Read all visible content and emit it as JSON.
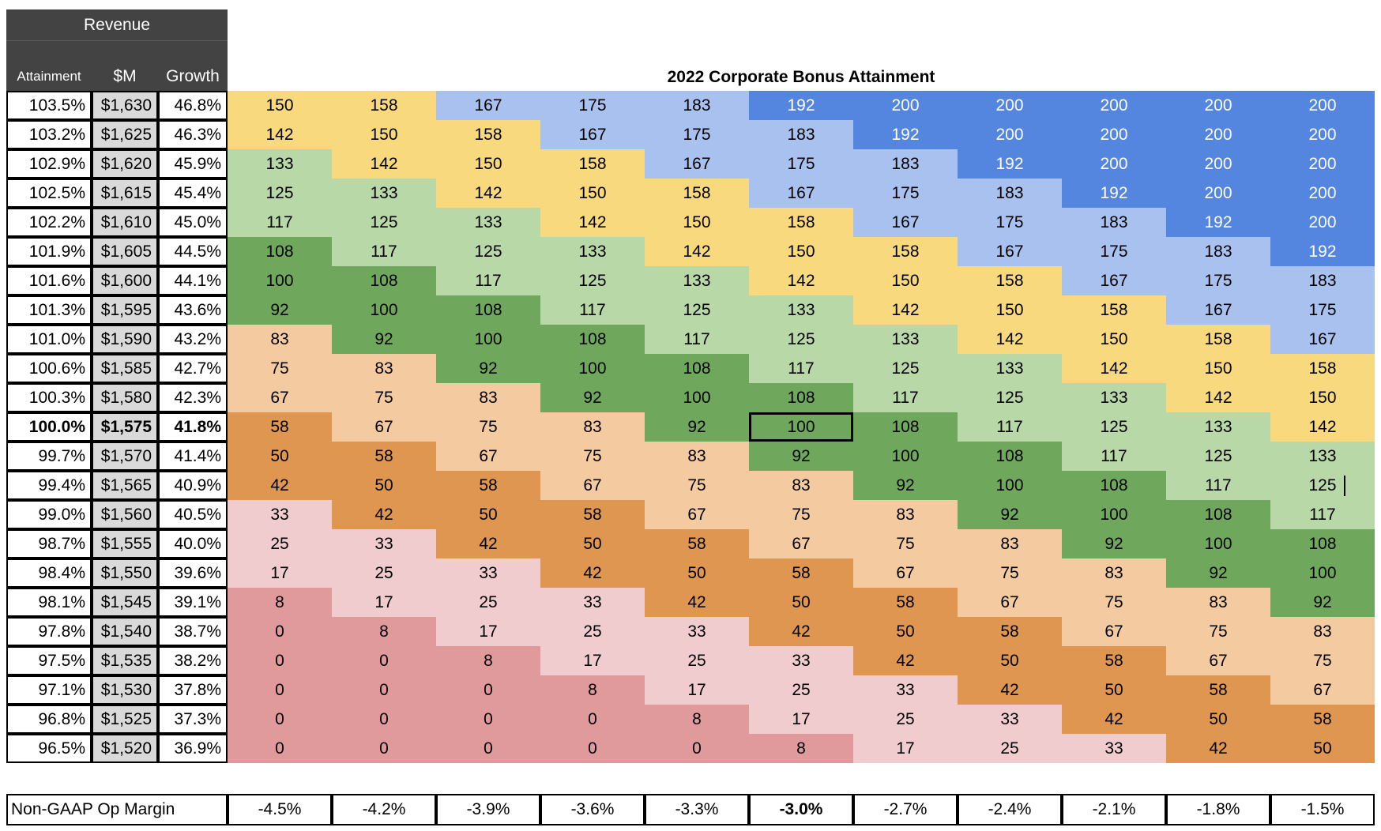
{
  "header": {
    "revenue_label": "Revenue",
    "col_attainment": "Attainment",
    "col_m": "$M",
    "col_growth": "Growth"
  },
  "title": "2022 Corporate Bonus Attainment",
  "rows": [
    {
      "attainment": "103.5%",
      "m": "$1,630",
      "growth": "46.8%",
      "values": [
        "150",
        "158",
        "167",
        "175",
        "183",
        "192",
        "200",
        "200",
        "200",
        "200",
        "200"
      ]
    },
    {
      "attainment": "103.2%",
      "m": "$1,625",
      "growth": "46.3%",
      "values": [
        "142",
        "150",
        "158",
        "167",
        "175",
        "183",
        "192",
        "200",
        "200",
        "200",
        "200"
      ]
    },
    {
      "attainment": "102.9%",
      "m": "$1,620",
      "growth": "45.9%",
      "values": [
        "133",
        "142",
        "150",
        "158",
        "167",
        "175",
        "183",
        "192",
        "200",
        "200",
        "200"
      ]
    },
    {
      "attainment": "102.5%",
      "m": "$1,615",
      "growth": "45.4%",
      "values": [
        "125",
        "133",
        "142",
        "150",
        "158",
        "167",
        "175",
        "183",
        "192",
        "200",
        "200"
      ]
    },
    {
      "attainment": "102.2%",
      "m": "$1,610",
      "growth": "45.0%",
      "values": [
        "117",
        "125",
        "133",
        "142",
        "150",
        "158",
        "167",
        "175",
        "183",
        "192",
        "200"
      ]
    },
    {
      "attainment": "101.9%",
      "m": "$1,605",
      "growth": "44.5%",
      "values": [
        "108",
        "117",
        "125",
        "133",
        "142",
        "150",
        "158",
        "167",
        "175",
        "183",
        "192"
      ]
    },
    {
      "attainment": "101.6%",
      "m": "$1,600",
      "growth": "44.1%",
      "values": [
        "100",
        "108",
        "117",
        "125",
        "133",
        "142",
        "150",
        "158",
        "167",
        "175",
        "183"
      ]
    },
    {
      "attainment": "101.3%",
      "m": "$1,595",
      "growth": "43.6%",
      "values": [
        "92",
        "100",
        "108",
        "117",
        "125",
        "133",
        "142",
        "150",
        "158",
        "167",
        "175"
      ]
    },
    {
      "attainment": "101.0%",
      "m": "$1,590",
      "growth": "43.2%",
      "values": [
        "83",
        "92",
        "100",
        "108",
        "117",
        "125",
        "133",
        "142",
        "150",
        "158",
        "167"
      ]
    },
    {
      "attainment": "100.6%",
      "m": "$1,585",
      "growth": "42.7%",
      "values": [
        "75",
        "83",
        "92",
        "100",
        "108",
        "117",
        "125",
        "133",
        "142",
        "150",
        "158"
      ]
    },
    {
      "attainment": "100.3%",
      "m": "$1,580",
      "growth": "42.3%",
      "values": [
        "67",
        "75",
        "83",
        "92",
        "100",
        "108",
        "117",
        "125",
        "133",
        "142",
        "150"
      ]
    },
    {
      "attainment": "100.0%",
      "m": "$1,575",
      "growth": "41.8%",
      "values": [
        "58",
        "67",
        "75",
        "83",
        "92",
        "100",
        "108",
        "117",
        "125",
        "133",
        "142"
      ]
    },
    {
      "attainment": "99.7%",
      "m": "$1,570",
      "growth": "41.4%",
      "values": [
        "50",
        "58",
        "67",
        "75",
        "83",
        "92",
        "100",
        "108",
        "117",
        "125",
        "133"
      ]
    },
    {
      "attainment": "99.4%",
      "m": "$1,565",
      "growth": "40.9%",
      "values": [
        "42",
        "50",
        "58",
        "67",
        "75",
        "83",
        "92",
        "100",
        "108",
        "117",
        "125"
      ]
    },
    {
      "attainment": "99.0%",
      "m": "$1,560",
      "growth": "40.5%",
      "values": [
        "33",
        "42",
        "50",
        "58",
        "67",
        "75",
        "83",
        "92",
        "100",
        "108",
        "117"
      ]
    },
    {
      "attainment": "98.7%",
      "m": "$1,555",
      "growth": "40.0%",
      "values": [
        "25",
        "33",
        "42",
        "50",
        "58",
        "67",
        "75",
        "83",
        "92",
        "100",
        "108"
      ]
    },
    {
      "attainment": "98.4%",
      "m": "$1,550",
      "growth": "39.6%",
      "values": [
        "17",
        "25",
        "33",
        "42",
        "50",
        "58",
        "67",
        "75",
        "83",
        "92",
        "100"
      ]
    },
    {
      "attainment": "98.1%",
      "m": "$1,545",
      "growth": "39.1%",
      "values": [
        "8",
        "17",
        "25",
        "33",
        "42",
        "50",
        "58",
        "67",
        "75",
        "83",
        "92"
      ]
    },
    {
      "attainment": "97.8%",
      "m": "$1,540",
      "growth": "38.7%",
      "values": [
        "0",
        "8",
        "17",
        "25",
        "33",
        "42",
        "50",
        "58",
        "67",
        "75",
        "83"
      ]
    },
    {
      "attainment": "97.5%",
      "m": "$1,535",
      "growth": "38.2%",
      "values": [
        "0",
        "0",
        "8",
        "17",
        "25",
        "33",
        "42",
        "50",
        "58",
        "67",
        "75"
      ]
    },
    {
      "attainment": "97.1%",
      "m": "$1,530",
      "growth": "37.8%",
      "values": [
        "0",
        "0",
        "0",
        "8",
        "17",
        "25",
        "33",
        "42",
        "50",
        "58",
        "67"
      ]
    },
    {
      "attainment": "96.8%",
      "m": "$1,525",
      "growth": "37.3%",
      "values": [
        "0",
        "0",
        "0",
        "0",
        "8",
        "17",
        "25",
        "33",
        "42",
        "50",
        "58"
      ]
    },
    {
      "attainment": "96.5%",
      "m": "$1,520",
      "growth": "36.9%",
      "values": [
        "0",
        "0",
        "0",
        "0",
        "0",
        "8",
        "17",
        "25",
        "33",
        "42",
        "50"
      ]
    }
  ],
  "highlight_row": 11,
  "selected_cell": {
    "row": 11,
    "col": 5
  },
  "footer": {
    "label": "Non-GAAP Op Margin",
    "values": [
      "-4.5%",
      "-4.2%",
      "-3.9%",
      "-3.6%",
      "-3.3%",
      "-3.0%",
      "-2.7%",
      "-2.4%",
      "-2.1%",
      "-1.8%",
      "-1.5%"
    ],
    "bold_index": 5
  },
  "colors": {
    "header_bg": "#434343",
    "label_gray": "#d9d9d9",
    "blue_dark": "#5486e0",
    "blue_light": "#a9c1ef",
    "yellow": "#f9d97e",
    "green_light": "#b9d8a8",
    "green_dark": "#6fa85c",
    "peach": "#f4cba0",
    "orange": "#de9650",
    "pink_light": "#f0ccce",
    "pink_dark": "#e09a9c"
  }
}
